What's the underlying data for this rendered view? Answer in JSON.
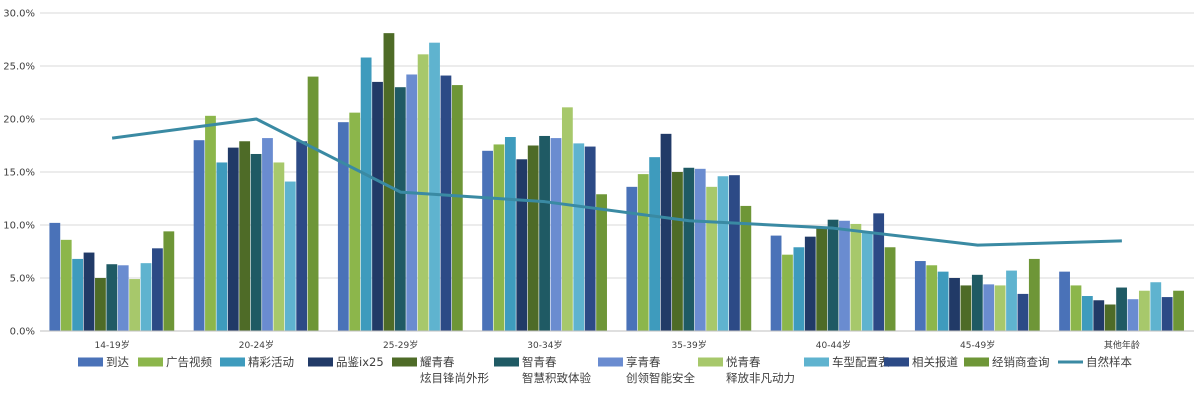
{
  "chart_data": {
    "type": "bar",
    "title": "",
    "xlabel": "",
    "ylabel": "",
    "ylim": [
      0,
      30
    ],
    "y_ticks": [
      "0.0%",
      "5.0%",
      "10.0%",
      "15.0%",
      "20.0%",
      "25.0%",
      "30.0%"
    ],
    "grid": "horizontal",
    "legend_position": "bottom",
    "categories": [
      "14-19岁",
      "20-24岁",
      "25-29岁",
      "30-34岁",
      "35-39岁",
      "40-44岁",
      "45-49岁",
      "其他年龄"
    ],
    "series": [
      {
        "name": "到达",
        "color": "#4a72b8",
        "values": [
          10.2,
          18.0,
          19.7,
          17.0,
          13.6,
          9.0,
          6.6,
          5.6
        ]
      },
      {
        "name": "广告视频",
        "color": "#8cb64b",
        "values": [
          8.6,
          20.3,
          20.6,
          17.6,
          14.8,
          7.2,
          6.2,
          4.3
        ]
      },
      {
        "name": "精彩活动",
        "color": "#3e9bbd",
        "values": [
          6.8,
          15.9,
          25.8,
          18.3,
          16.4,
          7.9,
          5.6,
          3.3
        ]
      },
      {
        "name": "品鉴ix25",
        "color": "#213a67",
        "values": [
          7.4,
          17.3,
          23.5,
          16.2,
          18.6,
          8.9,
          5.0,
          2.9
        ]
      },
      {
        "name": "耀青春\n炫目锋尚外形",
        "color": "#4e6b27",
        "values": [
          5.0,
          17.9,
          28.1,
          17.5,
          15.0,
          9.8,
          4.3,
          2.5
        ]
      },
      {
        "name": "智青春\n智慧积致体验",
        "color": "#1f5a64",
        "values": [
          6.3,
          16.7,
          23.0,
          18.4,
          15.4,
          10.5,
          5.3,
          4.1
        ]
      },
      {
        "name": "享青春\n创领智能安全",
        "color": "#6a8cd0",
        "values": [
          6.2,
          18.2,
          24.2,
          18.2,
          15.3,
          10.4,
          4.4,
          3.0
        ]
      },
      {
        "name": "悦青春\n释放非凡动力",
        "color": "#a7c86b",
        "values": [
          4.9,
          15.9,
          26.1,
          21.1,
          13.6,
          10.1,
          4.3,
          3.8
        ]
      },
      {
        "name": "车型配置表",
        "color": "#5fb3cf",
        "values": [
          6.4,
          14.1,
          27.2,
          17.7,
          14.6,
          9.4,
          5.7,
          4.6
        ]
      },
      {
        "name": "相关报道",
        "color": "#2c4a86",
        "values": [
          7.8,
          17.9,
          24.1,
          17.4,
          14.7,
          11.1,
          3.5,
          3.2
        ]
      },
      {
        "name": "经销商查询",
        "color": "#6e9637",
        "values": [
          9.4,
          24.0,
          23.2,
          12.9,
          11.8,
          7.9,
          6.8,
          3.8
        ]
      }
    ],
    "line_series": [
      {
        "name": "自然样本",
        "color": "#3a8aa3",
        "values": [
          18.2,
          20.0,
          13.1,
          12.2,
          10.4,
          9.7,
          8.1,
          8.5
        ]
      }
    ]
  }
}
